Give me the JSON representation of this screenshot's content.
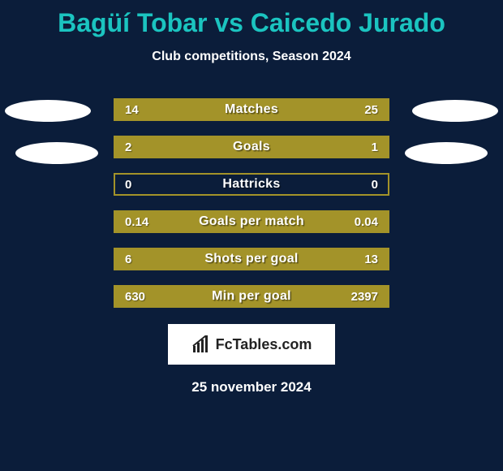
{
  "background_color": "#0b1d3a",
  "title_color": "#1bc4c0",
  "title": "Bagüí Tobar vs Caicedo Jurado",
  "subtitle": "Club competitions, Season 2024",
  "bar_border_color": "#a39329",
  "fill_color": "#a39329",
  "rows": [
    {
      "label": "Matches",
      "left": "14",
      "right": "25",
      "leftVal": 14,
      "rightVal": 25
    },
    {
      "label": "Goals",
      "left": "2",
      "right": "1",
      "leftVal": 2,
      "rightVal": 1
    },
    {
      "label": "Hattricks",
      "left": "0",
      "right": "0",
      "leftVal": 0,
      "rightVal": 0
    },
    {
      "label": "Goals per match",
      "left": "0.14",
      "right": "0.04",
      "leftVal": 0.14,
      "rightVal": 0.04
    },
    {
      "label": "Shots per goal",
      "left": "6",
      "right": "13",
      "leftVal": 6,
      "rightVal": 13
    },
    {
      "label": "Min per goal",
      "left": "630",
      "right": "2397",
      "leftVal": 630,
      "rightVal": 2397
    }
  ],
  "logo_text": "FcTables.com",
  "date": "25 november 2024"
}
